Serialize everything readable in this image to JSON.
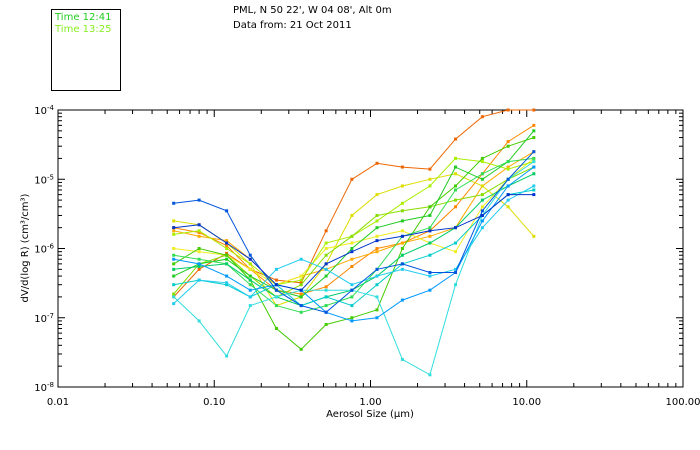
{
  "header": {
    "site": "PML, N 50 22', W 04 08', Alt 0m",
    "date": "Data from: 21 Oct 2011"
  },
  "legend": [
    {
      "label": "Time 12:41",
      "color": "#22cc22"
    },
    {
      "label": "Time 13:25",
      "color": "#88ee22"
    }
  ],
  "chart_data": {
    "type": "line",
    "title": "PML, N 50 22', W 04 08', Alt 0m",
    "xlabel": "Aerosol Size (µm)",
    "ylabel": "dV/d(log R) (cm³/cm³)",
    "xscale": "log",
    "yscale": "log",
    "xlim": [
      0.01,
      100
    ],
    "ylim": [
      1e-08,
      0.0001
    ],
    "xticks": [
      {
        "value": 0.01,
        "label": "0.01"
      },
      {
        "value": 0.1,
        "label": "0.10"
      },
      {
        "value": 1,
        "label": "1.00"
      },
      {
        "value": 10,
        "label": "10.00"
      },
      {
        "value": 100,
        "label": "100.00"
      }
    ],
    "yticks": [
      {
        "value": 1e-08,
        "base": "10",
        "exp": "-8"
      },
      {
        "value": 1e-07,
        "base": "10",
        "exp": "-7"
      },
      {
        "value": 1e-06,
        "base": "10",
        "exp": "-6"
      },
      {
        "value": 1e-05,
        "base": "10",
        "exp": "-5"
      },
      {
        "value": 0.0001,
        "base": "10",
        "exp": "-4"
      }
    ],
    "x": [
      0.055,
      0.08,
      0.12,
      0.17,
      0.25,
      0.36,
      0.52,
      0.76,
      1.1,
      1.6,
      2.4,
      3.5,
      5.2,
      7.6,
      11.1
    ],
    "series": [
      {
        "name": "orange-1",
        "color": "#ee6600",
        "values": [
          2e-07,
          5e-07,
          8.5e-07,
          5e-07,
          3.5e-07,
          3.2e-07,
          1.8e-06,
          1e-05,
          1.7e-05,
          1.5e-05,
          1.4e-05,
          3.8e-05,
          8e-05,
          0.0001,
          0.0001
        ]
      },
      {
        "name": "orange-2",
        "color": "#ff8800",
        "values": [
          2e-06,
          1.7e-06,
          1.1e-06,
          5e-07,
          2.5e-07,
          2.2e-07,
          2.8e-07,
          5.5e-07,
          1e-06,
          1.2e-06,
          1.8e-06,
          4e-06,
          1.2e-05,
          3.5e-05,
          6e-05
        ]
      },
      {
        "name": "yellow-orange",
        "color": "#ffaa00",
        "values": [
          1.8e-06,
          1.5e-06,
          1.3e-06,
          7e-07,
          3e-07,
          4e-07,
          5e-07,
          7e-07,
          9e-07,
          1.2e-06,
          1.5e-06,
          2e-06,
          8e-06,
          1.5e-05,
          2.5e-05
        ]
      },
      {
        "name": "yellow-1",
        "color": "#dddd00",
        "values": [
          2.5e-06,
          2.2e-06,
          1.2e-06,
          6e-07,
          1.5e-07,
          2e-07,
          6e-07,
          3e-06,
          6e-06,
          8e-06,
          1e-05,
          1.2e-05,
          8e-06,
          4e-06,
          1.5e-06
        ]
      },
      {
        "name": "yellow-2",
        "color": "#eeee22",
        "values": [
          1e-06,
          9e-07,
          8e-07,
          5e-07,
          3e-07,
          4e-07,
          1e-06,
          1.2e-06,
          1.5e-06,
          1.8e-06,
          1.2e-06,
          9e-07,
          4e-06,
          1e-05,
          2e-05
        ]
      },
      {
        "name": "lime-1",
        "color": "#aaee00",
        "values": [
          1.6e-06,
          1.8e-06,
          1e-06,
          6e-07,
          3e-07,
          3.5e-07,
          1.2e-06,
          1.5e-06,
          2.5e-06,
          4.5e-06,
          8e-06,
          2e-05,
          1.8e-05,
          1.4e-05,
          1.8e-05
        ]
      },
      {
        "name": "lime-2",
        "color": "#88dd00",
        "values": [
          2.2e-07,
          6e-07,
          8e-07,
          4e-07,
          2e-07,
          3e-07,
          8e-07,
          1.5e-06,
          3e-06,
          3.5e-06,
          4e-06,
          5e-06,
          6e-06,
          1e-05,
          1.5e-05
        ]
      },
      {
        "name": "green-1",
        "color": "#44cc00",
        "values": [
          6e-07,
          1e-06,
          8e-07,
          3.5e-07,
          7e-08,
          3.5e-08,
          8e-08,
          1e-07,
          1.3e-07,
          1e-06,
          4e-06,
          8e-06,
          2e-05,
          3e-05,
          4e-05
        ]
      },
      {
        "name": "green-2",
        "color": "#22cc22",
        "values": [
          4e-07,
          6e-07,
          7e-07,
          4e-07,
          2.5e-07,
          2e-07,
          4e-07,
          1e-06,
          2e-06,
          2.5e-06,
          3e-06,
          1.5e-05,
          1e-05,
          1.8e-05,
          5e-05
        ]
      },
      {
        "name": "green-3",
        "color": "#33dd55",
        "values": [
          8e-07,
          7e-07,
          6e-07,
          3e-07,
          1.5e-07,
          1.2e-07,
          1.5e-07,
          2e-07,
          5e-07,
          1.5e-06,
          2e-06,
          7e-06,
          1.2e-05,
          1.8e-05,
          2e-05
        ]
      },
      {
        "name": "teal-green",
        "color": "#00cc66",
        "values": [
          5e-07,
          5.5e-07,
          6e-07,
          3.5e-07,
          2e-07,
          1.5e-07,
          2e-07,
          2.5e-07,
          4e-07,
          8e-07,
          1.2e-06,
          2e-06,
          5e-06,
          8e-06,
          1.2e-05
        ]
      },
      {
        "name": "cyan-1",
        "color": "#00cccc",
        "values": [
          3e-07,
          3.5e-07,
          3e-07,
          2e-07,
          3e-07,
          1.5e-07,
          2e-07,
          1.5e-07,
          3e-07,
          6e-07,
          8e-07,
          1.2e-06,
          3e-06,
          6e-06,
          7e-06
        ]
      },
      {
        "name": "cyan-2",
        "color": "#22ccee",
        "values": [
          1.6e-07,
          3.5e-07,
          3.2e-07,
          2e-07,
          5e-07,
          7e-07,
          5e-07,
          3e-07,
          4e-07,
          5e-07,
          4e-07,
          5e-07,
          2e-06,
          5e-06,
          8e-06
        ]
      },
      {
        "name": "cyan-3",
        "color": "#33dddd",
        "values": [
          2e-07,
          9e-08,
          2.8e-08,
          1.5e-07,
          2e-07,
          2.5e-07,
          2.5e-07,
          2.5e-07,
          2e-07,
          2.5e-08,
          1.5e-08,
          3e-07,
          3e-06,
          1e-05,
          1.8e-05
        ]
      },
      {
        "name": "sky-blue",
        "color": "#0099ff",
        "values": [
          7e-07,
          6e-07,
          4e-07,
          2.5e-07,
          3e-07,
          2.5e-07,
          1.2e-07,
          9e-08,
          1e-07,
          1.8e-07,
          2.5e-07,
          4.5e-07,
          2.5e-06,
          8e-06,
          1.5e-05
        ]
      },
      {
        "name": "blue-1",
        "color": "#0055dd",
        "values": [
          4.5e-06,
          5e-06,
          3.5e-06,
          8e-07,
          2.5e-07,
          1.5e-07,
          1.2e-07,
          2.5e-07,
          5e-07,
          6e-07,
          4.5e-07,
          4.5e-07,
          3.5e-06,
          1e-05,
          2.5e-05
        ]
      },
      {
        "name": "blue-2",
        "color": "#0033cc",
        "values": [
          2e-06,
          2.2e-06,
          1.2e-06,
          7e-07,
          3e-07,
          2.5e-07,
          6e-07,
          9e-07,
          1.3e-06,
          1.5e-06,
          1.8e-06,
          2e-06,
          3e-06,
          6e-06,
          6e-06
        ]
      }
    ]
  }
}
